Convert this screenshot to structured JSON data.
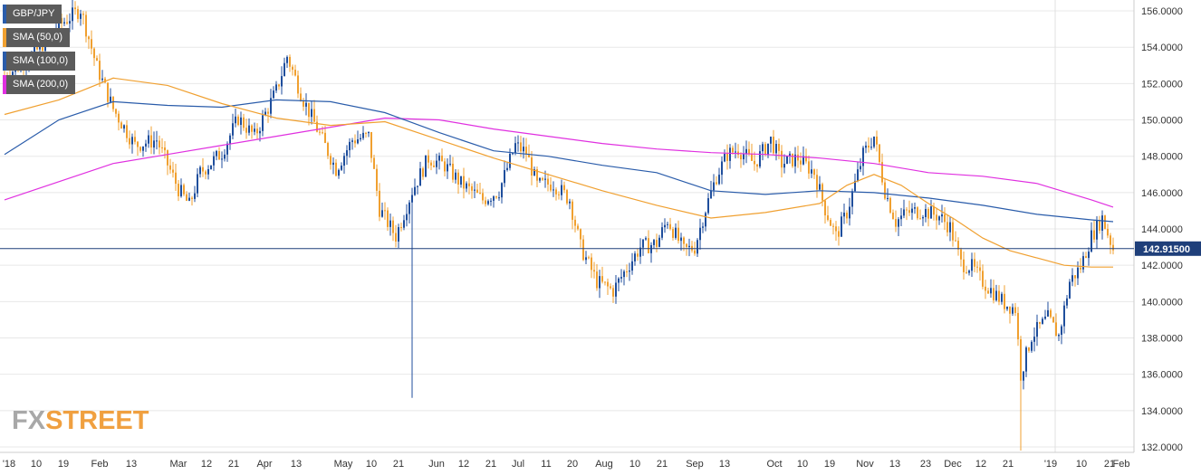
{
  "chart_data": {
    "type": "candlestick",
    "symbol": "GBP/JPY",
    "current_price": 142.915,
    "current_price_label": "142.91500",
    "ylim": [
      131.7,
      156.6
    ],
    "y_ticks": [
      "156.0000",
      "154.0000",
      "152.0000",
      "150.0000",
      "148.0000",
      "146.0000",
      "144.0000",
      "142.0000",
      "140.0000",
      "138.0000",
      "136.0000",
      "134.0000",
      "132.0000"
    ],
    "y_tick_values": [
      156,
      154,
      152,
      150,
      148,
      146,
      144,
      142,
      140,
      138,
      136,
      134,
      132
    ],
    "x_labels": [
      "'18",
      "10",
      "19",
      "Feb",
      "13",
      "Mar",
      "12",
      "21",
      "Apr",
      "13",
      "May",
      "10",
      "21",
      "Jun",
      "12",
      "21",
      "Jul",
      "11",
      "20",
      "Aug",
      "10",
      "21",
      "Sep",
      "13",
      "Oct",
      "10",
      "19",
      "Nov",
      "13",
      "23",
      "Dec",
      "12",
      "21",
      "'19",
      "10",
      "21",
      "Feb"
    ],
    "grid": true,
    "legend": [
      {
        "label": "GBP/JPY",
        "color": "#2a5caa"
      },
      {
        "label": "SMA (50,0)",
        "color": "#f0a030"
      },
      {
        "label": "SMA (100,0)",
        "color": "#2a5caa"
      },
      {
        "label": "SMA (200,0)",
        "color": "#e030e0"
      }
    ],
    "candle_colors": {
      "up": "#1f4e9c",
      "down": "#f0a030"
    },
    "close_path": [
      [
        0,
        152.4
      ],
      [
        10,
        153.5
      ],
      [
        20,
        155.2
      ],
      [
        28,
        156.1
      ],
      [
        34,
        152.9
      ],
      [
        40,
        150.6
      ],
      [
        48,
        148.6
      ],
      [
        56,
        148.9
      ],
      [
        64,
        146.2
      ],
      [
        68,
        145.3
      ],
      [
        72,
        147.1
      ],
      [
        80,
        148.2
      ],
      [
        86,
        150.1
      ],
      [
        92,
        149.1
      ],
      [
        100,
        151.6
      ],
      [
        104,
        153.5
      ],
      [
        110,
        151.1
      ],
      [
        116,
        149.2
      ],
      [
        122,
        147.3
      ],
      [
        128,
        148.9
      ],
      [
        134,
        149.1
      ],
      [
        138,
        145.1
      ],
      [
        144,
        143.6
      ],
      [
        150,
        146.1
      ],
      [
        156,
        147.9
      ],
      [
        162,
        147.5
      ],
      [
        168,
        146.5
      ],
      [
        176,
        145.6
      ],
      [
        182,
        146.1
      ],
      [
        188,
        148.6
      ],
      [
        192,
        148.2
      ],
      [
        196,
        146.4
      ],
      [
        202,
        146.5
      ],
      [
        208,
        145.6
      ],
      [
        212,
        143.0
      ],
      [
        218,
        141.1
      ],
      [
        224,
        140.6
      ],
      [
        228,
        141.6
      ],
      [
        234,
        143.0
      ],
      [
        240,
        143.2
      ],
      [
        244,
        144.5
      ],
      [
        250,
        142.8
      ],
      [
        254,
        143.0
      ],
      [
        258,
        145.1
      ],
      [
        262,
        146.9
      ],
      [
        266,
        148.1
      ],
      [
        270,
        148.4
      ],
      [
        276,
        147.6
      ],
      [
        282,
        148.9
      ],
      [
        286,
        147.6
      ],
      [
        292,
        147.9
      ],
      [
        298,
        147.1
      ],
      [
        302,
        145.1
      ],
      [
        306,
        143.6
      ],
      [
        310,
        144.9
      ],
      [
        316,
        148.1
      ],
      [
        320,
        149.1
      ],
      [
        324,
        146.1
      ],
      [
        328,
        144.4
      ],
      [
        332,
        144.9
      ],
      [
        338,
        145.0
      ],
      [
        344,
        144.7
      ],
      [
        348,
        144.1
      ],
      [
        352,
        142.1
      ],
      [
        356,
        141.9
      ],
      [
        360,
        141.1
      ],
      [
        364,
        140.5
      ],
      [
        368,
        139.9
      ],
      [
        372,
        139.6
      ],
      [
        374,
        136.0
      ],
      [
        378,
        138.1
      ],
      [
        384,
        139.1
      ],
      [
        388,
        138.1
      ],
      [
        392,
        141.1
      ],
      [
        396,
        141.9
      ],
      [
        400,
        143.6
      ],
      [
        404,
        144.6
      ],
      [
        408,
        142.9
      ]
    ],
    "sma50": [
      [
        0,
        150.3
      ],
      [
        20,
        151.1
      ],
      [
        40,
        152.3
      ],
      [
        60,
        151.9
      ],
      [
        80,
        150.9
      ],
      [
        100,
        150.1
      ],
      [
        120,
        149.7
      ],
      [
        140,
        149.9
      ],
      [
        160,
        148.9
      ],
      [
        180,
        147.9
      ],
      [
        200,
        147.0
      ],
      [
        220,
        146.1
      ],
      [
        240,
        145.3
      ],
      [
        260,
        144.6
      ],
      [
        280,
        144.9
      ],
      [
        300,
        145.4
      ],
      [
        310,
        146.4
      ],
      [
        320,
        147.0
      ],
      [
        330,
        146.4
      ],
      [
        340,
        145.4
      ],
      [
        350,
        144.5
      ],
      [
        360,
        143.5
      ],
      [
        370,
        142.8
      ],
      [
        380,
        142.4
      ],
      [
        390,
        142.0
      ],
      [
        400,
        141.9
      ],
      [
        408,
        141.9
      ]
    ],
    "sma100": [
      [
        0,
        148.1
      ],
      [
        20,
        150.0
      ],
      [
        40,
        151.0
      ],
      [
        60,
        150.8
      ],
      [
        80,
        150.7
      ],
      [
        100,
        151.1
      ],
      [
        120,
        151.0
      ],
      [
        140,
        150.4
      ],
      [
        160,
        149.3
      ],
      [
        180,
        148.3
      ],
      [
        200,
        148.0
      ],
      [
        220,
        147.5
      ],
      [
        240,
        147.1
      ],
      [
        260,
        146.1
      ],
      [
        280,
        145.9
      ],
      [
        300,
        146.1
      ],
      [
        320,
        146.0
      ],
      [
        340,
        145.7
      ],
      [
        360,
        145.3
      ],
      [
        380,
        144.8
      ],
      [
        400,
        144.5
      ],
      [
        408,
        144.4
      ]
    ],
    "sma200": [
      [
        0,
        145.6
      ],
      [
        20,
        146.6
      ],
      [
        40,
        147.6
      ],
      [
        60,
        148.1
      ],
      [
        80,
        148.6
      ],
      [
        100,
        149.1
      ],
      [
        120,
        149.6
      ],
      [
        140,
        150.1
      ],
      [
        160,
        150.0
      ],
      [
        180,
        149.5
      ],
      [
        200,
        149.1
      ],
      [
        220,
        148.7
      ],
      [
        240,
        148.4
      ],
      [
        260,
        148.2
      ],
      [
        280,
        148.1
      ],
      [
        300,
        147.9
      ],
      [
        320,
        147.6
      ],
      [
        340,
        147.1
      ],
      [
        360,
        146.9
      ],
      [
        380,
        146.5
      ],
      [
        400,
        145.6
      ],
      [
        408,
        145.2
      ]
    ]
  },
  "watermark": {
    "left": "FX",
    "right": "STREET"
  }
}
